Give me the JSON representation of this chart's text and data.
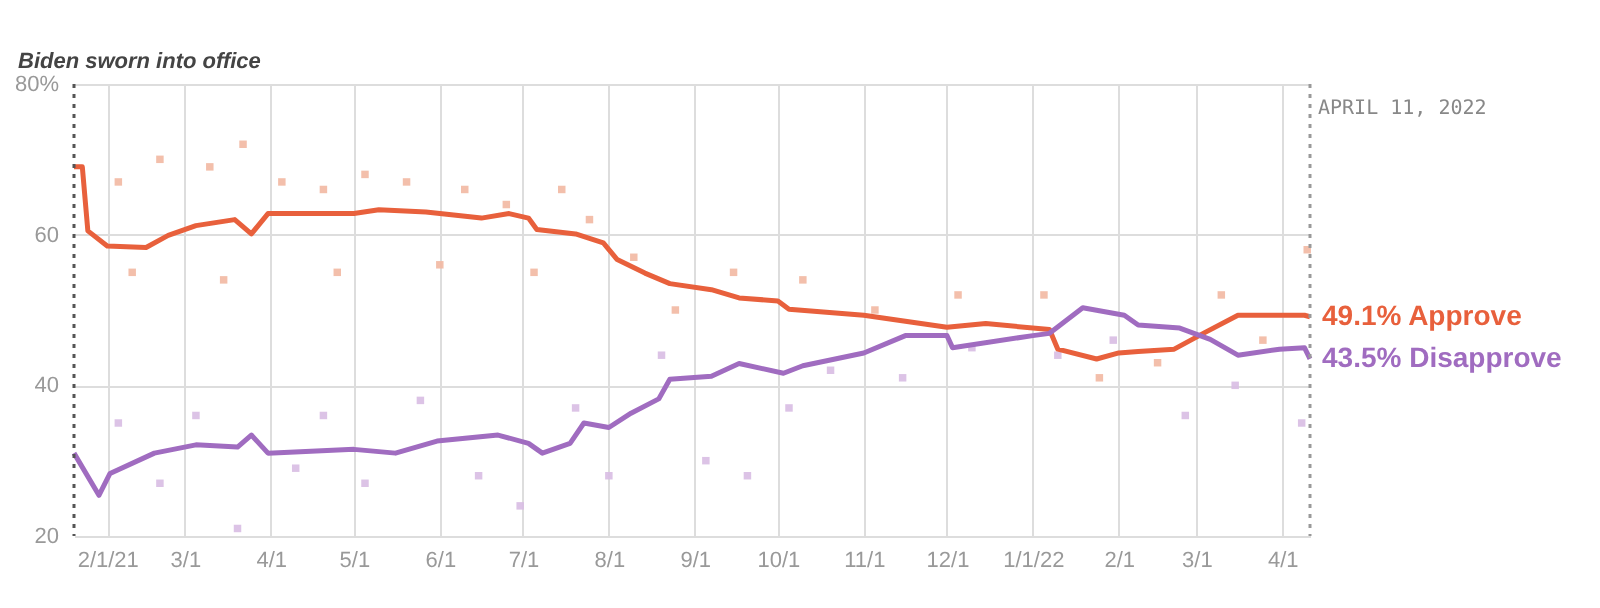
{
  "chart_data": {
    "type": "line",
    "xlim": [
      "2021-01-20",
      "2022-04-11"
    ],
    "xticks": [
      {
        "value": "2021-02-01",
        "label": "2/1/21"
      },
      {
        "value": "2021-03-01",
        "label": "3/1"
      },
      {
        "value": "2021-04-01",
        "label": "4/1"
      },
      {
        "value": "2021-05-01",
        "label": "5/1"
      },
      {
        "value": "2021-06-01",
        "label": "6/1"
      },
      {
        "value": "2021-07-01",
        "label": "7/1"
      },
      {
        "value": "2021-08-01",
        "label": "8/1"
      },
      {
        "value": "2021-09-01",
        "label": "9/1"
      },
      {
        "value": "2021-10-01",
        "label": "10/1"
      },
      {
        "value": "2021-11-01",
        "label": "11/1"
      },
      {
        "value": "2021-12-01",
        "label": "12/1"
      },
      {
        "value": "2022-01-01",
        "label": "1/1/22"
      },
      {
        "value": "2022-02-01",
        "label": "2/1"
      },
      {
        "value": "2022-03-01",
        "label": "3/1"
      },
      {
        "value": "2022-04-01",
        "label": "4/1"
      }
    ],
    "ylim": [
      20,
      80
    ],
    "yticks": [
      20,
      40,
      60,
      {
        "value": 80,
        "label": "80%"
      }
    ],
    "grid": true,
    "ref_lines": [
      {
        "axis": "x",
        "value": "2021-01-20",
        "label": "Biden sworn into office",
        "line_style": "dotted",
        "color": "#555555"
      },
      {
        "axis": "x",
        "value": "2022-04-11",
        "label": "APRIL 11, 2022",
        "line_style": "dotted",
        "color": "#999999"
      }
    ],
    "series": [
      {
        "type": "scatter",
        "color": "#f2b8a2",
        "marker": "square",
        "x": [
          "2021-02-05",
          "2021-02-20",
          "2021-03-10",
          "2021-03-22",
          "2021-04-05",
          "2021-04-20",
          "2021-05-05",
          "2021-05-20",
          "2021-06-10",
          "2021-06-25",
          "2021-07-15",
          "2021-07-25",
          "2021-02-10",
          "2021-03-15",
          "2021-04-25",
          "2021-06-01",
          "2021-07-05",
          "2021-08-10",
          "2021-08-25",
          "2021-09-15",
          "2021-10-10",
          "2021-11-05",
          "2021-12-05",
          "2022-01-05",
          "2022-01-25",
          "2022-02-15",
          "2022-03-10",
          "2022-03-25",
          "2022-04-10"
        ],
        "values": [
          67,
          70,
          69,
          72,
          67,
          66,
          68,
          67,
          66,
          64,
          66,
          62,
          55,
          54,
          55,
          56,
          55,
          57,
          50,
          55,
          54,
          50,
          52,
          52,
          41,
          43,
          52,
          46,
          58
        ]
      },
      {
        "type": "scatter",
        "color": "#d8bde3",
        "marker": "square",
        "x": [
          "2021-02-05",
          "2021-02-20",
          "2021-03-05",
          "2021-03-20",
          "2021-04-10",
          "2021-04-20",
          "2021-05-05",
          "2021-05-25",
          "2021-06-15",
          "2021-06-30",
          "2021-07-20",
          "2021-08-01",
          "2021-08-20",
          "2021-09-05",
          "2021-09-20",
          "2021-10-05",
          "2021-10-20",
          "2021-11-15",
          "2021-12-10",
          "2022-01-10",
          "2022-01-30",
          "2022-02-25",
          "2022-03-15",
          "2022-04-08"
        ],
        "values": [
          35,
          27,
          36,
          21,
          29,
          36,
          27,
          38,
          28,
          24,
          37,
          28,
          44,
          30,
          28,
          37,
          42,
          41,
          45,
          44,
          46,
          36,
          40,
          35
        ]
      },
      {
        "name": "Approve",
        "color": "#e8603c",
        "x": [
          "2021-01-20",
          "2021-01-23",
          "2021-01-25",
          "2021-02-01",
          "2021-02-15",
          "2021-02-23",
          "2021-03-05",
          "2021-03-19",
          "2021-03-25",
          "2021-03-31",
          "2021-05-01",
          "2021-05-10",
          "2021-05-27",
          "2021-06-16",
          "2021-06-26",
          "2021-07-03",
          "2021-07-06",
          "2021-07-20",
          "2021-07-30",
          "2021-08-04",
          "2021-08-14",
          "2021-08-23",
          "2021-09-07",
          "2021-09-17",
          "2021-10-01",
          "2021-10-05",
          "2021-11-01",
          "2021-12-01",
          "2021-12-15",
          "2022-01-07",
          "2022-01-10",
          "2022-01-24",
          "2022-02-01",
          "2022-02-08",
          "2022-02-21",
          "2022-03-04",
          "2022-03-16",
          "2022-04-09",
          "2022-04-11"
        ],
        "values": [
          69,
          69,
          60.5,
          58.5,
          58.3,
          59.9,
          61.2,
          62,
          60.1,
          62.8,
          62.8,
          63.3,
          63,
          62.2,
          62.8,
          62.2,
          60.7,
          60.1,
          58.9,
          56.7,
          54.9,
          53.5,
          52.7,
          51.6,
          51.2,
          50.1,
          49.3,
          47.7,
          48.2,
          47.4,
          44.8,
          43.5,
          44.3,
          44.5,
          44.8,
          47,
          49.3,
          49.3,
          49.1
        ],
        "value_labels": [
          null,
          null,
          null,
          null,
          null,
          null,
          null,
          null,
          null,
          null,
          null,
          null,
          null,
          null,
          null,
          null,
          null,
          null,
          null,
          null,
          null,
          null,
          null,
          null,
          null,
          null,
          null,
          null,
          null,
          null,
          null,
          null,
          null,
          null,
          null,
          null,
          null,
          null,
          "49.1%"
        ]
      },
      {
        "name": "Disapprove",
        "color": "#a06cc0",
        "x": [
          "2021-01-20",
          "2021-01-29",
          "2021-02-02",
          "2021-02-18",
          "2021-03-05",
          "2021-03-20",
          "2021-03-25",
          "2021-03-31",
          "2021-05-01",
          "2021-05-16",
          "2021-05-31",
          "2021-06-22",
          "2021-07-03",
          "2021-07-08",
          "2021-07-18",
          "2021-07-23",
          "2021-08-01",
          "2021-08-09",
          "2021-08-19",
          "2021-08-23",
          "2021-09-07",
          "2021-09-17",
          "2021-10-03",
          "2021-10-10",
          "2021-11-01",
          "2021-11-16",
          "2021-12-01",
          "2021-12-03",
          "2022-01-01",
          "2022-01-07",
          "2022-01-19",
          "2022-02-03",
          "2022-02-08",
          "2022-02-23",
          "2022-03-06",
          "2022-03-16",
          "2022-03-31",
          "2022-04-09",
          "2022-04-11"
        ],
        "values": [
          31,
          25.4,
          28.3,
          31,
          32.1,
          31.8,
          33.4,
          31,
          31.5,
          31,
          32.6,
          33.4,
          32.3,
          31,
          32.3,
          35,
          34.4,
          36.3,
          38.2,
          40.8,
          41.2,
          42.9,
          41.6,
          42.6,
          44.3,
          46.6,
          46.6,
          45,
          46.6,
          46.9,
          50.3,
          49.3,
          48,
          47.6,
          46.1,
          44,
          44.8,
          45,
          43.5
        ],
        "value_labels": [
          null,
          null,
          null,
          null,
          null,
          null,
          null,
          null,
          null,
          null,
          null,
          null,
          null,
          null,
          null,
          null,
          null,
          null,
          null,
          null,
          null,
          null,
          null,
          null,
          null,
          null,
          null,
          null,
          null,
          null,
          null,
          null,
          null,
          null,
          null,
          null,
          null,
          null,
          "43.5%"
        ]
      }
    ]
  }
}
